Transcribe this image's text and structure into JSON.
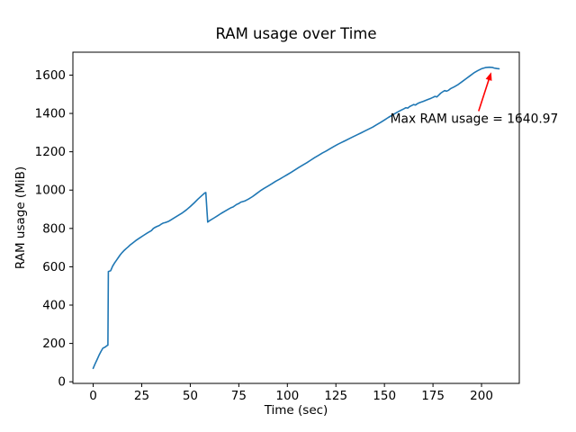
{
  "chart_data": {
    "type": "line",
    "title": "RAM usage over Time",
    "xlabel": "Time (sec)",
    "ylabel": "RAM usage (MiB)",
    "xlim": [
      -10.45,
      219.45
    ],
    "ylim": [
      -8.5,
      1719.5
    ],
    "x_ticks": [
      0,
      25,
      50,
      75,
      100,
      125,
      150,
      175,
      200
    ],
    "y_ticks": [
      0,
      200,
      400,
      600,
      800,
      1000,
      1200,
      1400,
      1600
    ],
    "grid": false,
    "legend": "none",
    "line_color": "#1f77b4",
    "background_color": "#ffffff",
    "spine_color": "#000000",
    "series": [
      {
        "name": "RAM usage",
        "max_value": 1640.97,
        "points": [
          [
            0,
            70
          ],
          [
            1,
            94
          ],
          [
            2,
            116
          ],
          [
            3,
            138
          ],
          [
            4,
            158
          ],
          [
            5,
            175
          ],
          [
            5.5,
            178
          ],
          [
            6,
            180
          ],
          [
            7,
            188
          ],
          [
            7.6,
            191
          ],
          [
            7.8,
            575
          ],
          [
            9,
            580
          ],
          [
            10,
            603
          ],
          [
            11,
            620
          ],
          [
            12,
            634
          ],
          [
            13,
            649
          ],
          [
            14,
            663
          ],
          [
            15,
            675
          ],
          [
            16,
            686
          ],
          [
            17,
            695
          ],
          [
            18,
            704
          ],
          [
            19,
            713
          ],
          [
            20,
            721
          ],
          [
            22,
            737
          ],
          [
            24,
            751
          ],
          [
            26,
            764
          ],
          [
            28,
            777
          ],
          [
            30,
            789
          ],
          [
            31,
            800
          ],
          [
            32,
            806
          ],
          [
            33,
            811
          ],
          [
            34,
            815
          ],
          [
            35,
            822
          ],
          [
            36,
            828
          ],
          [
            37,
            830
          ],
          [
            38,
            834
          ],
          [
            39,
            838
          ],
          [
            40,
            844
          ],
          [
            42,
            857
          ],
          [
            44,
            869
          ],
          [
            46,
            882
          ],
          [
            48,
            897
          ],
          [
            50,
            914
          ],
          [
            52,
            933
          ],
          [
            54,
            953
          ],
          [
            56,
            972
          ],
          [
            57.5,
            985
          ],
          [
            58,
            987
          ],
          [
            58.6,
            890
          ],
          [
            59,
            833
          ],
          [
            60,
            841
          ],
          [
            62,
            853
          ],
          [
            64,
            866
          ],
          [
            66,
            879
          ],
          [
            68,
            891
          ],
          [
            70,
            903
          ],
          [
            71,
            908
          ],
          [
            72,
            912
          ],
          [
            73,
            919
          ],
          [
            74,
            926
          ],
          [
            75,
            930
          ],
          [
            76,
            937
          ],
          [
            77,
            940
          ],
          [
            78,
            943
          ],
          [
            80,
            953
          ],
          [
            82,
            966
          ],
          [
            84,
            981
          ],
          [
            86,
            996
          ],
          [
            88,
            1009
          ],
          [
            90,
            1021
          ],
          [
            92,
            1033
          ],
          [
            94,
            1046
          ],
          [
            96,
            1057
          ],
          [
            98,
            1069
          ],
          [
            100,
            1081
          ],
          [
            102,
            1093
          ],
          [
            104,
            1106
          ],
          [
            106,
            1119
          ],
          [
            108,
            1131
          ],
          [
            110,
            1143
          ],
          [
            112,
            1156
          ],
          [
            114,
            1169
          ],
          [
            116,
            1181
          ],
          [
            118,
            1193
          ],
          [
            120,
            1204
          ],
          [
            122,
            1216
          ],
          [
            124,
            1228
          ],
          [
            126,
            1239
          ],
          [
            128,
            1249
          ],
          [
            130,
            1259
          ],
          [
            132,
            1269
          ],
          [
            134,
            1279
          ],
          [
            136,
            1289
          ],
          [
            138,
            1299
          ],
          [
            140,
            1309
          ],
          [
            142,
            1319
          ],
          [
            144,
            1329
          ],
          [
            146,
            1341
          ],
          [
            148,
            1353
          ],
          [
            150,
            1366
          ],
          [
            152,
            1379
          ],
          [
            154,
            1391
          ],
          [
            156,
            1403
          ],
          [
            158,
            1414
          ],
          [
            160,
            1424
          ],
          [
            161,
            1430
          ],
          [
            162,
            1428
          ],
          [
            163,
            1436
          ],
          [
            164,
            1441
          ],
          [
            165,
            1446
          ],
          [
            166,
            1444
          ],
          [
            167,
            1451
          ],
          [
            168,
            1456
          ],
          [
            170,
            1463
          ],
          [
            172,
            1471
          ],
          [
            174,
            1479
          ],
          [
            175,
            1484
          ],
          [
            176,
            1489
          ],
          [
            177,
            1486
          ],
          [
            178,
            1496
          ],
          [
            179,
            1506
          ],
          [
            180,
            1513
          ],
          [
            181,
            1519
          ],
          [
            182,
            1516
          ],
          [
            183,
            1521
          ],
          [
            184,
            1529
          ],
          [
            186,
            1539
          ],
          [
            188,
            1551
          ],
          [
            190,
            1566
          ],
          [
            192,
            1581
          ],
          [
            194,
            1596
          ],
          [
            196,
            1611
          ],
          [
            198,
            1623
          ],
          [
            200,
            1633
          ],
          [
            202,
            1639
          ],
          [
            204,
            1640.97
          ],
          [
            205.5,
            1640
          ],
          [
            206.5,
            1637
          ],
          [
            208,
            1634
          ],
          [
            209,
            1633
          ]
        ]
      }
    ],
    "annotation": {
      "text": "Max RAM usage = 1640.97",
      "color": "#ff0000",
      "text_xy": [
        153,
        1350
      ],
      "arrow_tail_xy": [
        198.5,
        1412
      ],
      "arrow_tip_xy": [
        205,
        1615
      ]
    }
  }
}
